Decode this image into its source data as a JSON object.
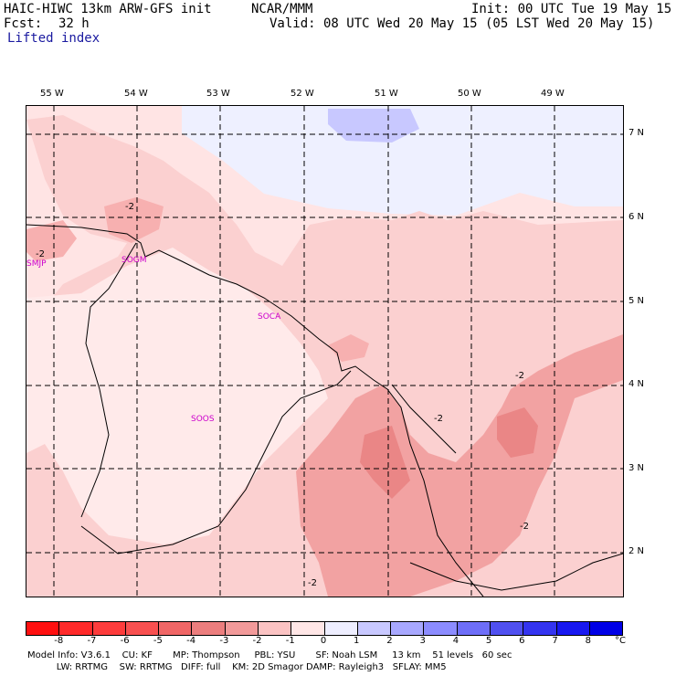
{
  "header": {
    "title_left": "HAIC-HIWC 13km ARW-GFS init",
    "org": "NCAR/MMM",
    "init": "Init: 00 UTC Tue 19 May 15",
    "fcst_label": "Fcst:",
    "fcst_value": "32 h",
    "valid": "Valid: 08 UTC Wed 20 May 15 (05 LST Wed 20 May 15)",
    "field": "Lifted index"
  },
  "map": {
    "lon_labels": [
      "55 W",
      "54 W",
      "53 W",
      "52 W",
      "51 W",
      "50 W",
      "49 W"
    ],
    "lat_labels": [
      "7 N",
      "6 N",
      "5 N",
      "4 N",
      "3 N",
      "2 N"
    ],
    "cities": [
      "SMJP",
      "SOGM",
      "SOCA",
      "SOOS"
    ],
    "contour_labels": [
      "-2",
      "-2",
      "-2",
      "-2",
      "-2",
      "-2"
    ],
    "colors": {
      "neg1": "#ffe4e4",
      "neg2": "#fcc4c4",
      "neg3": "#f49a9a",
      "pos1": "#e9e9ff",
      "pos2": "#c8c8ff"
    }
  },
  "colorbar": {
    "labels": [
      "-8",
      "-7",
      "-6",
      "-5",
      "-4",
      "-3",
      "-2",
      "-1",
      "0",
      "1",
      "2",
      "3",
      "4",
      "5",
      "6",
      "7",
      "8"
    ],
    "unit": "°C",
    "colors": [
      "#ff1010",
      "#ff2a2a",
      "#fd3c3c",
      "#f85050",
      "#f06666",
      "#ec7e7e",
      "#f29a9a",
      "#fbc3c3",
      "#ffe6e6",
      "#eeeeff",
      "#c8c8ff",
      "#a8a8ff",
      "#8c8cff",
      "#6e6ef8",
      "#5050f0",
      "#3434f0",
      "#1818f0",
      "#0000e6"
    ]
  },
  "model_info": {
    "line1": "Model Info: V3.6.1    CU: KF       MP: Thompson     PBL: YSU       SF: Noah LSM     13 km    51 levels   60 sec",
    "line2": "          LW: RRTMG    SW: RRTMG   DIFF: full    KM: 2D Smagor DAMP: Rayleigh3   SFLAY: MM5"
  }
}
